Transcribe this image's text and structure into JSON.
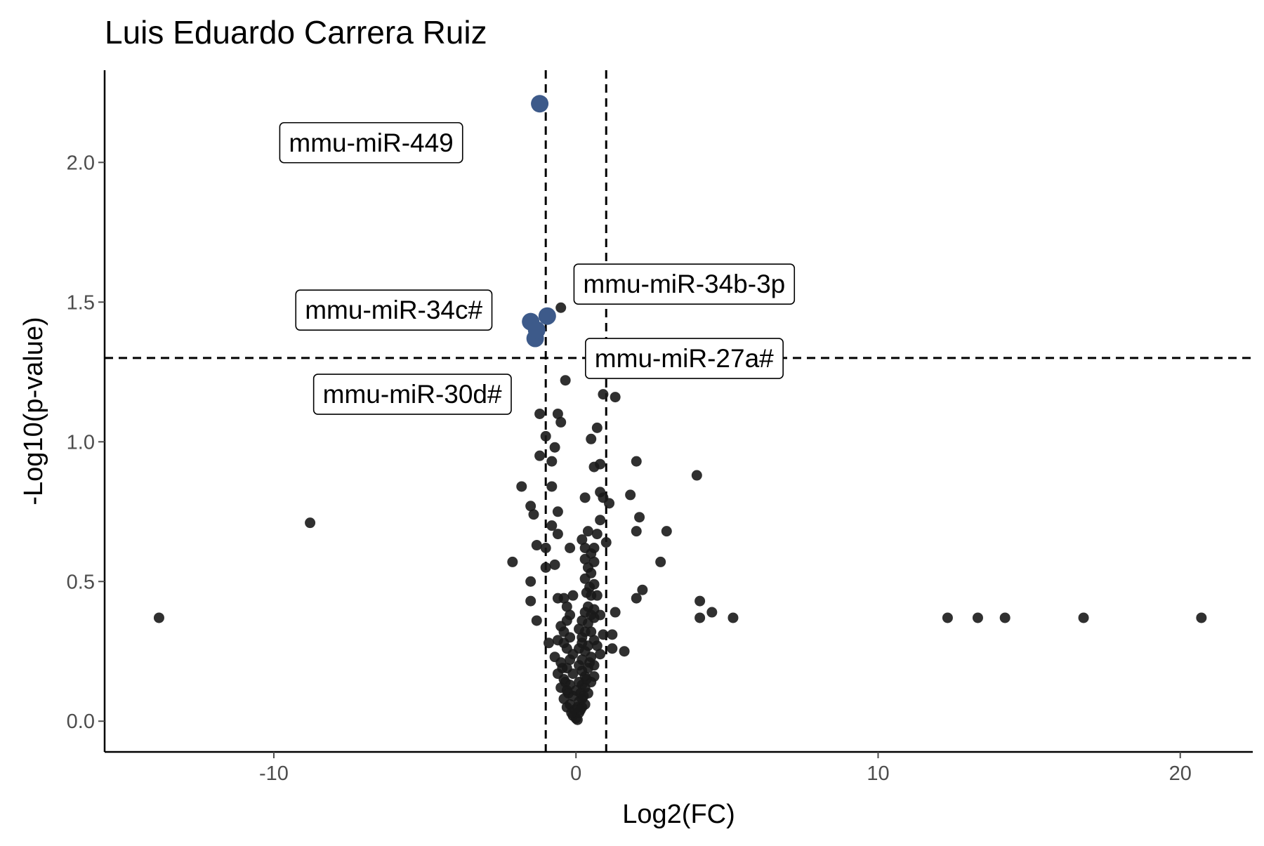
{
  "chart_data": {
    "type": "scatter",
    "title": "Luis Eduardo Carrera Ruiz",
    "xlabel": "Log2(FC)",
    "ylabel": "-Log10(p-value)",
    "xlim": [
      -15.6,
      22.4
    ],
    "ylim": [
      -0.11,
      2.33
    ],
    "x_ticks": [
      -10,
      0,
      10,
      20
    ],
    "x_tick_labels": [
      "-10",
      "0",
      "10",
      "20"
    ],
    "y_ticks": [
      0,
      0.5,
      1,
      1.5,
      2
    ],
    "y_tick_labels": [
      "0.0",
      "0.5",
      "1.0",
      "1.5",
      "2.0"
    ],
    "grid": false,
    "legend": "none",
    "colors": {
      "significant": "#3d5a8a",
      "other": "#1a1a1a",
      "axis": "#000000",
      "ticks": "#4d4d4d"
    },
    "thresholds": {
      "x": [
        -1,
        1
      ],
      "y": 1.3,
      "style": "dashed"
    },
    "significant_points": [
      {
        "label": "mmu-miR-449",
        "x": -1.2,
        "y": 2.21
      },
      {
        "label": "mmu-miR-34b-3p",
        "x": -0.95,
        "y": 1.45
      },
      {
        "label": "mmu-miR-34c#",
        "x": -1.5,
        "y": 1.43
      },
      {
        "label": "mmu-miR-30d#",
        "x": -1.35,
        "y": 1.37
      },
      {
        "label": "mmu-miR-27a#",
        "x": -1.3,
        "y": 1.4
      }
    ],
    "other_points": [
      [
        -13.8,
        0.37
      ],
      [
        -8.8,
        0.71
      ],
      [
        4.0,
        0.88
      ],
      [
        4.1,
        0.43
      ],
      [
        4.1,
        0.37
      ],
      [
        4.5,
        0.39
      ],
      [
        5.2,
        0.37
      ],
      [
        12.3,
        0.37
      ],
      [
        13.3,
        0.37
      ],
      [
        14.2,
        0.37
      ],
      [
        16.8,
        0.37
      ],
      [
        20.7,
        0.37
      ],
      [
        -0.5,
        1.48
      ],
      [
        -0.35,
        1.22
      ],
      [
        0.9,
        1.17
      ],
      [
        1.3,
        1.16
      ],
      [
        -1.2,
        1.1
      ],
      [
        -0.6,
        1.1
      ],
      [
        -0.5,
        1.07
      ],
      [
        0.7,
        1.05
      ],
      [
        -1.0,
        1.02
      ],
      [
        0.5,
        1.01
      ],
      [
        -0.7,
        0.98
      ],
      [
        -1.2,
        0.95
      ],
      [
        -0.8,
        0.93
      ],
      [
        2.0,
        0.93
      ],
      [
        0.8,
        0.92
      ],
      [
        0.6,
        0.91
      ],
      [
        -1.8,
        0.84
      ],
      [
        -0.8,
        0.84
      ],
      [
        0.3,
        0.8
      ],
      [
        0.8,
        0.82
      ],
      [
        1.8,
        0.81
      ],
      [
        0.9,
        0.8
      ],
      [
        1.1,
        0.78
      ],
      [
        -1.5,
        0.77
      ],
      [
        -0.6,
        0.75
      ],
      [
        -1.4,
        0.74
      ],
      [
        2.1,
        0.73
      ],
      [
        0.8,
        0.72
      ],
      [
        -0.8,
        0.7
      ],
      [
        2.0,
        0.68
      ],
      [
        3.0,
        0.68
      ],
      [
        0.4,
        0.68
      ],
      [
        0.7,
        0.67
      ],
      [
        -0.6,
        0.67
      ],
      [
        0.2,
        0.65
      ],
      [
        1.0,
        0.64
      ],
      [
        -1.3,
        0.63
      ],
      [
        0.3,
        0.62
      ],
      [
        0.6,
        0.62
      ],
      [
        -0.2,
        0.62
      ],
      [
        -1.0,
        0.62
      ],
      [
        0.5,
        0.6
      ],
      [
        0.3,
        0.58
      ],
      [
        0.6,
        0.57
      ],
      [
        -2.1,
        0.57
      ],
      [
        2.8,
        0.57
      ],
      [
        -0.7,
        0.56
      ],
      [
        0.4,
        0.55
      ],
      [
        -1.0,
        0.55
      ],
      [
        0.5,
        0.53
      ],
      [
        0.3,
        0.51
      ],
      [
        0.6,
        0.49
      ],
      [
        -1.5,
        0.5
      ],
      [
        0.45,
        0.48
      ],
      [
        0.35,
        0.46
      ],
      [
        2.2,
        0.47
      ],
      [
        0.5,
        0.45
      ],
      [
        0.7,
        0.45
      ],
      [
        -0.1,
        0.45
      ],
      [
        2.0,
        0.44
      ],
      [
        -0.4,
        0.44
      ],
      [
        -0.6,
        0.44
      ],
      [
        -1.5,
        0.43
      ],
      [
        0.4,
        0.41
      ],
      [
        0.6,
        0.4
      ],
      [
        -0.3,
        0.41
      ],
      [
        0.3,
        0.39
      ],
      [
        -0.2,
        0.38
      ],
      [
        0.5,
        0.38
      ],
      [
        0.8,
        0.38
      ],
      [
        1.3,
        0.39
      ],
      [
        0.6,
        0.37
      ],
      [
        0.2,
        0.36
      ],
      [
        -0.3,
        0.36
      ],
      [
        -1.3,
        0.36
      ],
      [
        0.4,
        0.35
      ],
      [
        -0.5,
        0.34
      ],
      [
        0.1,
        0.33
      ],
      [
        0.5,
        0.32
      ],
      [
        0.3,
        0.32
      ],
      [
        -0.4,
        0.32
      ],
      [
        0.9,
        0.31
      ],
      [
        1.2,
        0.31
      ],
      [
        0.2,
        0.3
      ],
      [
        -0.2,
        0.3
      ],
      [
        0.6,
        0.29
      ],
      [
        -0.6,
        0.29
      ],
      [
        -0.9,
        0.28
      ],
      [
        -0.4,
        0.28
      ],
      [
        0.2,
        0.28
      ],
      [
        0.4,
        0.27
      ],
      [
        0.1,
        0.26
      ],
      [
        -0.3,
        0.26
      ],
      [
        1.2,
        0.26
      ],
      [
        1.6,
        0.25
      ],
      [
        0.3,
        0.25
      ],
      [
        -0.1,
        0.24
      ],
      [
        0.8,
        0.24
      ],
      [
        0.5,
        0.23
      ],
      [
        0.2,
        0.22
      ],
      [
        -0.2,
        0.22
      ],
      [
        -0.5,
        0.21
      ],
      [
        0.1,
        0.2
      ],
      [
        0.4,
        0.19
      ],
      [
        -0.3,
        0.19
      ],
      [
        0.2,
        0.18
      ],
      [
        -0.1,
        0.17
      ],
      [
        0.3,
        0.16
      ],
      [
        0.6,
        0.16
      ],
      [
        -0.4,
        0.15
      ],
      [
        0.1,
        0.14
      ],
      [
        0.2,
        0.13
      ],
      [
        -0.2,
        0.13
      ],
      [
        0.3,
        0.12
      ],
      [
        -0.3,
        0.11
      ],
      [
        0.0,
        0.11
      ],
      [
        0.15,
        0.1
      ],
      [
        -0.1,
        0.09
      ],
      [
        0.2,
        0.08
      ],
      [
        -0.4,
        0.08
      ],
      [
        0.1,
        0.07
      ],
      [
        -0.2,
        0.06
      ],
      [
        0.05,
        0.05
      ],
      [
        0.2,
        0.05
      ],
      [
        -0.05,
        0.04
      ],
      [
        0.1,
        0.03
      ],
      [
        -0.1,
        0.02
      ],
      [
        0.0,
        0.01
      ],
      [
        0.05,
        0.005
      ],
      [
        0.3,
        0.06
      ],
      [
        -0.3,
        0.05
      ],
      [
        0.4,
        0.1
      ],
      [
        -0.5,
        0.12
      ],
      [
        0.5,
        0.14
      ],
      [
        -0.6,
        0.17
      ],
      [
        0.6,
        0.2
      ],
      [
        -0.7,
        0.23
      ],
      [
        0.7,
        0.27
      ],
      [
        0.45,
        0.21
      ],
      [
        -0.45,
        0.19
      ],
      [
        0.35,
        0.15
      ],
      [
        -0.35,
        0.14
      ],
      [
        0.25,
        0.09
      ],
      [
        -0.25,
        0.1
      ],
      [
        0.15,
        0.04
      ],
      [
        -0.15,
        0.03
      ]
    ]
  }
}
